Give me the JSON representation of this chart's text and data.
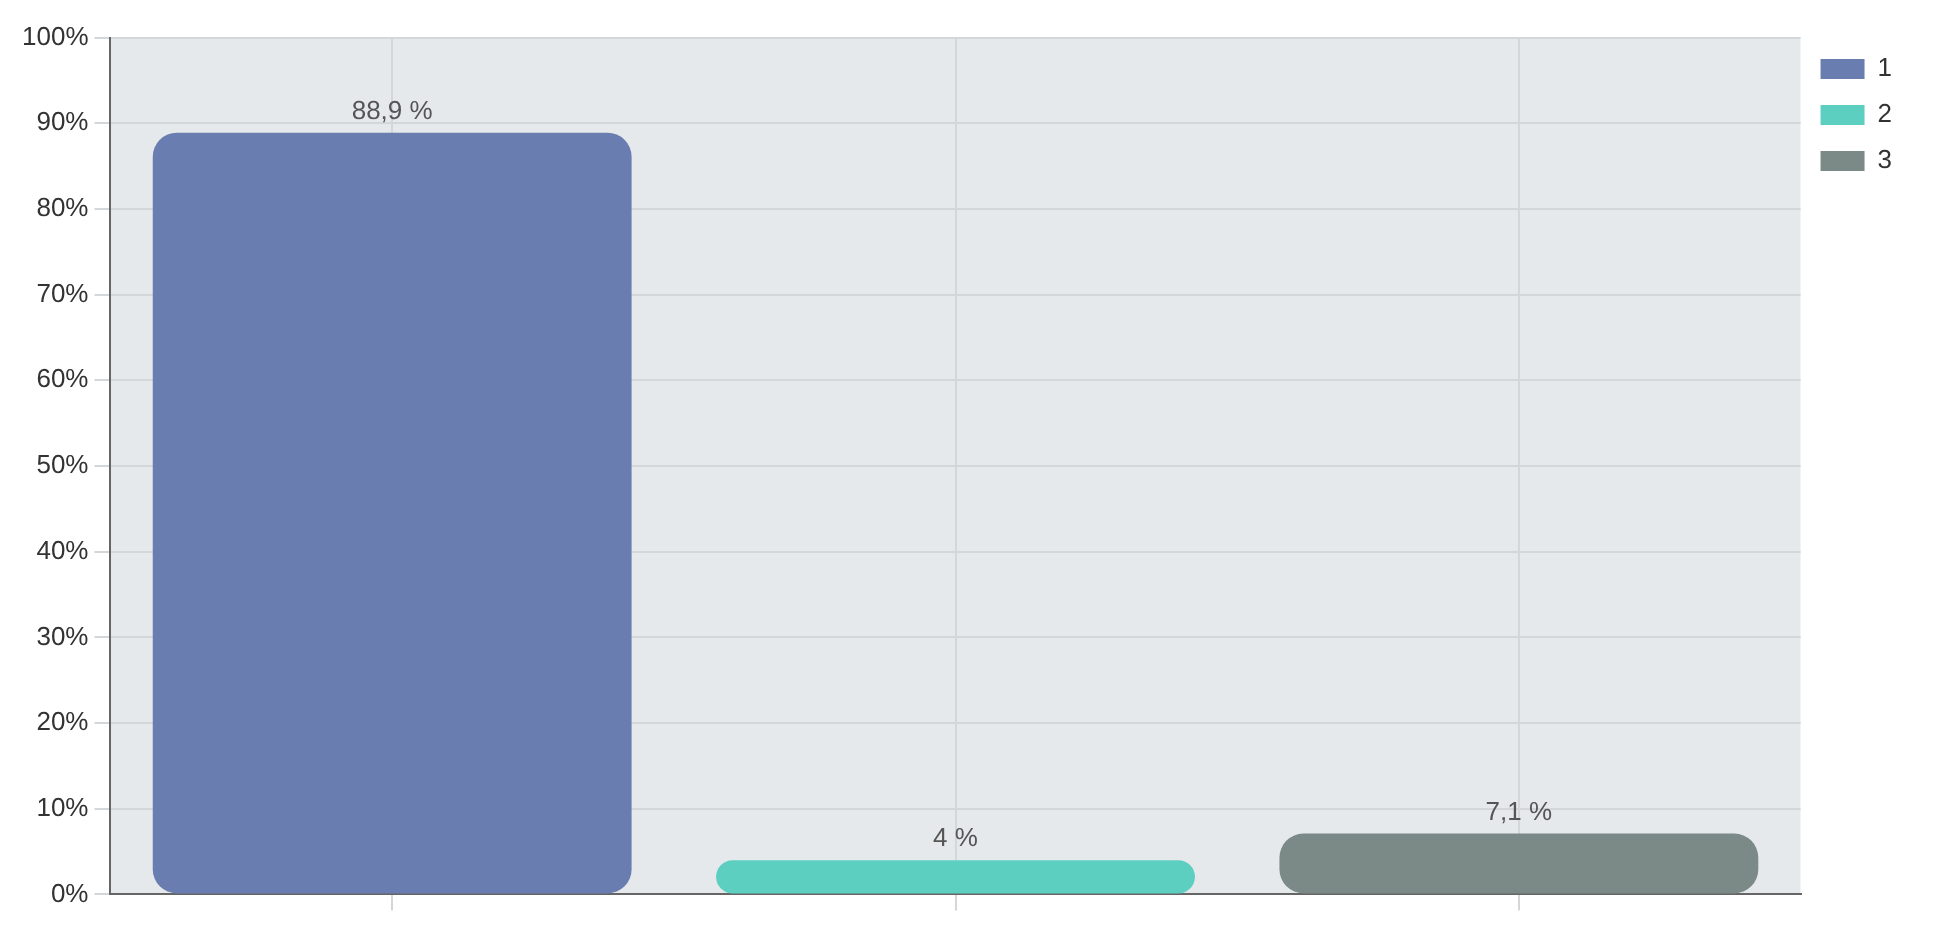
{
  "chart_data": {
    "type": "bar",
    "categories": [
      null,
      null,
      null
    ],
    "series": [
      {
        "name": "1",
        "color": "#6a7db0",
        "values": [
          88.9,
          null,
          null
        ],
        "value_labels": [
          "88,9 %",
          null,
          null
        ]
      },
      {
        "name": "2",
        "color": "#5ccfc0",
        "values": [
          null,
          4,
          null
        ],
        "value_labels": [
          null,
          "4 %",
          null
        ]
      },
      {
        "name": "3",
        "color": "#7b8a86",
        "values": [
          null,
          null,
          7.1
        ],
        "value_labels": [
          null,
          null,
          "7,1 %"
        ]
      }
    ],
    "ylim": [
      0,
      100
    ],
    "yticks": [
      {
        "value": 0,
        "label": "0%"
      },
      {
        "value": 10,
        "label": "10%"
      },
      {
        "value": 20,
        "label": "20%"
      },
      {
        "value": 30,
        "label": "30%"
      },
      {
        "value": 40,
        "label": "40%"
      },
      {
        "value": 50,
        "label": "50%"
      },
      {
        "value": 60,
        "label": "60%"
      },
      {
        "value": 70,
        "label": "70%"
      },
      {
        "value": 80,
        "label": "80%"
      },
      {
        "value": 90,
        "label": "90%"
      },
      {
        "value": 100,
        "label": "100%"
      }
    ],
    "grid": true,
    "legend": "top right",
    "tick_labels": "y"
  }
}
